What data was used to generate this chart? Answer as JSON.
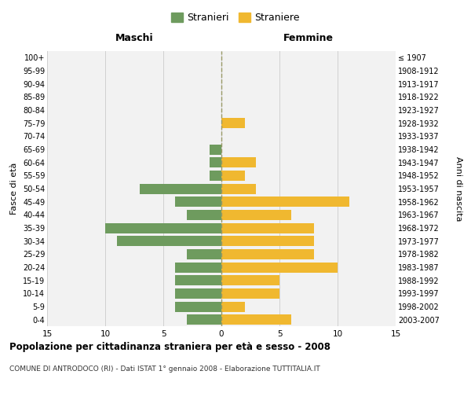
{
  "age_groups": [
    "0-4",
    "5-9",
    "10-14",
    "15-19",
    "20-24",
    "25-29",
    "30-34",
    "35-39",
    "40-44",
    "45-49",
    "50-54",
    "55-59",
    "60-64",
    "65-69",
    "70-74",
    "75-79",
    "80-84",
    "85-89",
    "90-94",
    "95-99",
    "100+"
  ],
  "birth_years": [
    "2003-2007",
    "1998-2002",
    "1993-1997",
    "1988-1992",
    "1983-1987",
    "1978-1982",
    "1973-1977",
    "1968-1972",
    "1963-1967",
    "1958-1962",
    "1953-1957",
    "1948-1952",
    "1943-1947",
    "1938-1942",
    "1933-1937",
    "1928-1932",
    "1923-1927",
    "1918-1922",
    "1913-1917",
    "1908-1912",
    "≤ 1907"
  ],
  "maschi": [
    3,
    4,
    4,
    4,
    4,
    3,
    9,
    10,
    3,
    4,
    7,
    1,
    1,
    1,
    0,
    0,
    0,
    0,
    0,
    0,
    0
  ],
  "femmine": [
    6,
    2,
    5,
    5,
    10,
    8,
    8,
    8,
    6,
    11,
    3,
    2,
    3,
    0,
    0,
    2,
    0,
    0,
    0,
    0,
    0
  ],
  "maschi_color": "#6e9b5e",
  "femmine_color": "#f0b830",
  "grid_color": "#d0d0d0",
  "center_line_color": "#999966",
  "center_line_style": "--",
  "title": "Popolazione per cittadinanza straniera per età e sesso - 2008",
  "subtitle": "COMUNE DI ANTRODOCO (RI) - Dati ISTAT 1° gennaio 2008 - Elaborazione TUTTITALIA.IT",
  "xlabel_left": "Maschi",
  "xlabel_right": "Femmine",
  "ylabel_left": "Fasce di età",
  "ylabel_right": "Anni di nascita",
  "legend_stranieri": "Stranieri",
  "legend_straniere": "Straniere",
  "xlim": 15,
  "background_color": "#ffffff",
  "plot_bg_color": "#f2f2f2"
}
